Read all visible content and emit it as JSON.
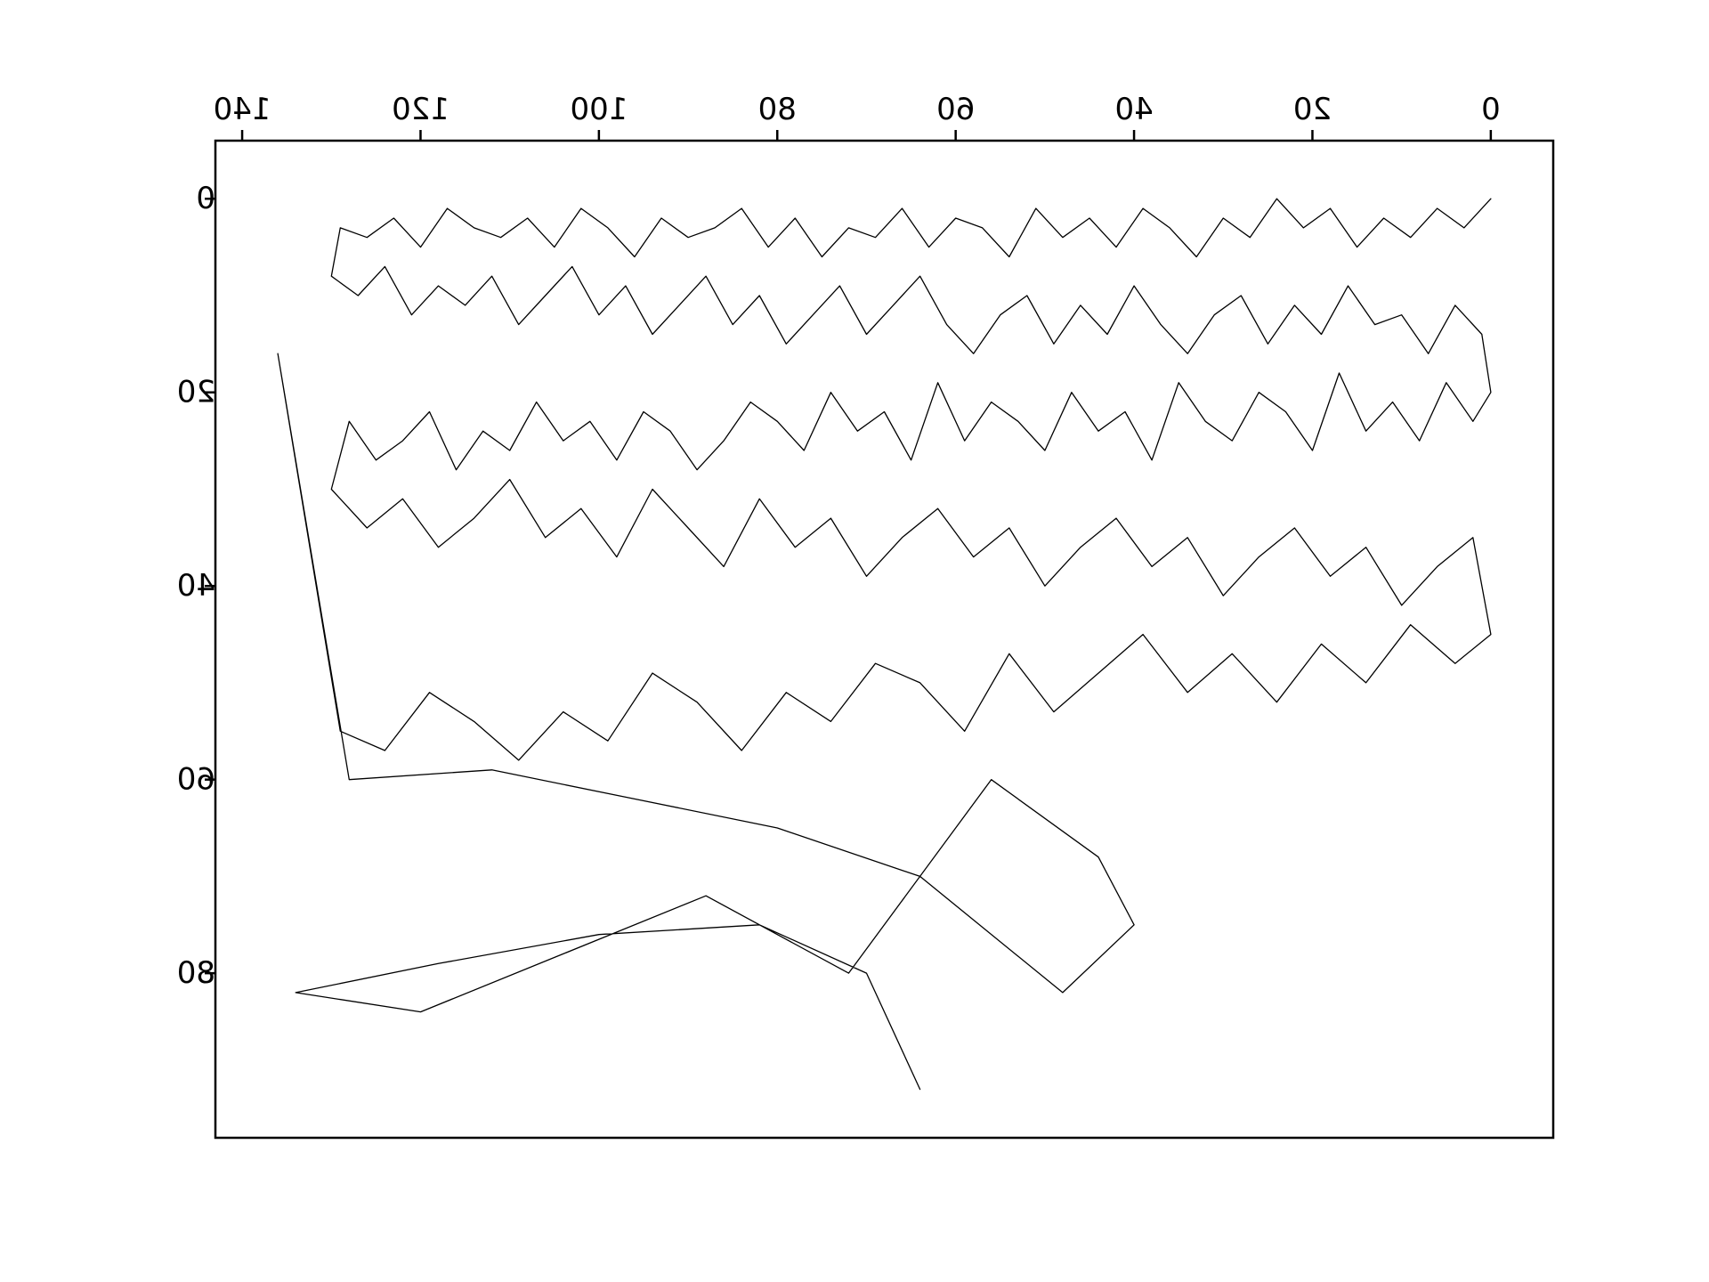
{
  "chart_data": {
    "type": "line",
    "title": "",
    "xlabel": "",
    "ylabel": "",
    "mirrored_rendering": true,
    "x_axis_position": "top",
    "y_axis_inverted": true,
    "xlim": [
      -7,
      143
    ],
    "ylim": [
      97,
      -6
    ],
    "grid": false,
    "legend": "none",
    "x_ticks": [
      0,
      20,
      40,
      60,
      80,
      100,
      120,
      140
    ],
    "x_tick_labels": [
      "0",
      "20",
      "40",
      "60",
      "80",
      "100",
      "120",
      "140"
    ],
    "y_ticks": [
      0,
      20,
      40,
      60,
      80
    ],
    "y_tick_labels": [
      "0",
      "20",
      "40",
      "60",
      "80"
    ],
    "line_color": "#000000",
    "series": [
      {
        "description": "single continuous black path; approximate visible trace",
        "x": [
          0,
          3,
          6,
          9,
          12,
          15,
          18,
          21,
          24,
          27,
          30,
          33,
          36,
          39,
          42,
          45,
          48,
          51,
          54,
          57,
          60,
          63,
          66,
          69,
          72,
          75,
          78,
          81,
          84,
          87,
          90,
          93,
          96,
          99,
          102,
          105,
          108,
          111,
          114,
          117,
          120,
          123,
          126,
          129,
          130,
          127,
          124,
          121,
          118,
          115,
          112,
          109,
          106,
          103,
          100,
          97,
          94,
          91,
          88,
          85,
          82,
          79,
          76,
          73,
          70,
          67,
          64,
          61,
          58,
          55,
          52,
          49,
          46,
          43,
          40,
          37,
          34,
          31,
          28,
          25,
          22,
          19,
          16,
          13,
          10,
          7,
          4,
          1,
          0,
          2,
          5,
          8,
          11,
          14,
          17,
          20,
          23,
          26,
          29,
          32,
          35,
          38,
          41,
          44,
          47,
          50,
          53,
          56,
          59,
          62,
          65,
          68,
          71,
          74,
          77,
          80,
          83,
          86,
          89,
          92,
          95,
          98,
          101,
          104,
          107,
          110,
          113,
          116,
          119,
          122,
          125,
          128,
          130,
          126,
          122,
          118,
          114,
          110,
          106,
          102,
          98,
          94,
          90,
          86,
          82,
          78,
          74,
          70,
          66,
          62,
          58,
          54,
          50,
          46,
          42,
          38,
          34,
          30,
          26,
          22,
          18,
          14,
          10,
          6,
          2,
          0,
          4,
          9,
          14,
          19,
          24,
          29,
          34,
          39,
          44,
          49,
          54,
          59,
          64,
          69,
          74,
          79,
          84,
          89,
          94,
          99,
          104,
          109,
          114,
          119,
          124,
          129,
          136,
          128,
          112,
          96,
          80,
          64,
          48,
          40,
          44,
          56,
          72,
          88,
          104,
          120,
          134,
          118,
          100,
          82,
          70,
          64
        ],
        "y": [
          0,
          3,
          1,
          4,
          2,
          5,
          1,
          3,
          0,
          4,
          2,
          6,
          3,
          1,
          5,
          2,
          4,
          1,
          6,
          3,
          2,
          5,
          1,
          4,
          3,
          6,
          2,
          5,
          1,
          3,
          4,
          2,
          6,
          3,
          1,
          5,
          2,
          4,
          3,
          1,
          5,
          2,
          4,
          3,
          8,
          10,
          7,
          12,
          9,
          11,
          8,
          13,
          10,
          7,
          12,
          9,
          14,
          11,
          8,
          13,
          10,
          15,
          12,
          9,
          14,
          11,
          8,
          13,
          16,
          12,
          10,
          15,
          11,
          14,
          9,
          13,
          16,
          12,
          10,
          15,
          11,
          14,
          9,
          13,
          12,
          16,
          11,
          14,
          20,
          23,
          19,
          25,
          21,
          24,
          18,
          26,
          22,
          20,
          25,
          23,
          19,
          27,
          22,
          24,
          20,
          26,
          23,
          21,
          25,
          19,
          27,
          22,
          24,
          20,
          26,
          23,
          21,
          25,
          28,
          24,
          22,
          27,
          23,
          25,
          21,
          26,
          24,
          28,
          22,
          25,
          27,
          23,
          30,
          34,
          31,
          36,
          33,
          29,
          35,
          32,
          37,
          30,
          34,
          38,
          31,
          36,
          33,
          39,
          35,
          32,
          37,
          34,
          40,
          36,
          33,
          38,
          35,
          41,
          37,
          34,
          39,
          36,
          42,
          38,
          35,
          45,
          48,
          44,
          50,
          46,
          52,
          47,
          51,
          45,
          49,
          53,
          47,
          55,
          50,
          48,
          54,
          51,
          57,
          52,
          49,
          56,
          53,
          58,
          54,
          51,
          57,
          55,
          16,
          60,
          59,
          62,
          65,
          70,
          82,
          75,
          68,
          60,
          80,
          72,
          78,
          84,
          82,
          79,
          76,
          75,
          80,
          92
        ]
      }
    ]
  }
}
